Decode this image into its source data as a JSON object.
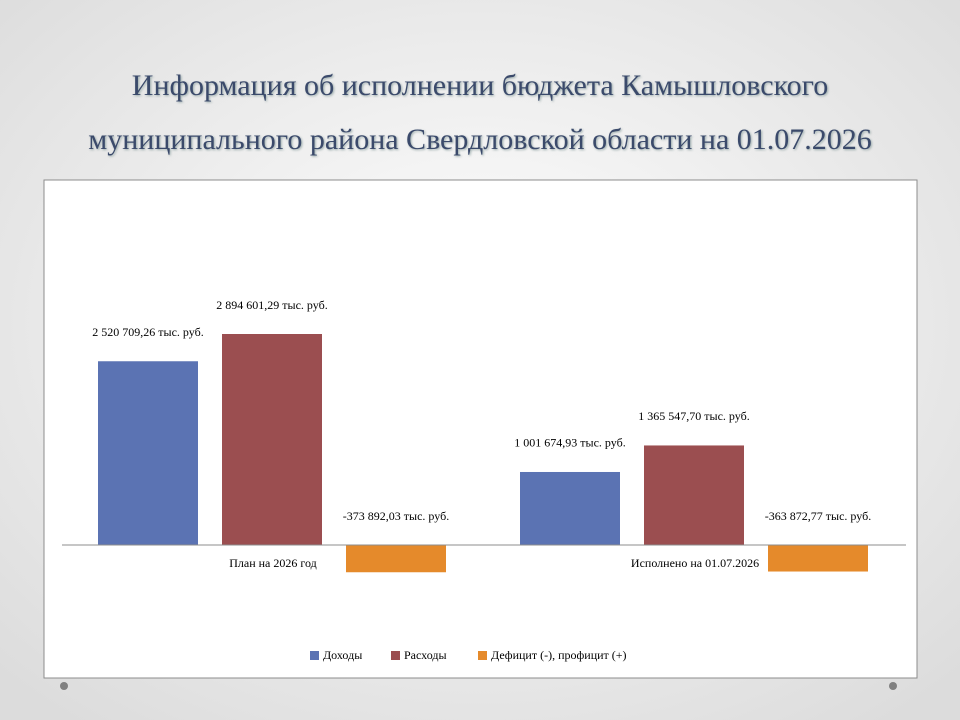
{
  "chart_data": {
    "type": "bar",
    "title": [
      "Информация об исполнении бюджета Камышловского",
      "муниципального района Свердловской области на 01.07.2026"
    ],
    "categories": [
      "План на 2026 год",
      "Исполнено на 01.07.2026"
    ],
    "series": [
      {
        "name": "Доходы",
        "color": "#5b73b3",
        "values": [
          2520709.26,
          1001674.93
        ],
        "value_labels": [
          "2 520 709,26 тыс. руб.",
          "1 001 674,93 тыс. руб."
        ]
      },
      {
        "name": "Расходы",
        "color": "#9b4e50",
        "values": [
          2894601.29,
          1365547.7
        ],
        "value_labels": [
          "2 894 601,29 тыс. руб.",
          "1 365 547,70 тыс. руб."
        ]
      },
      {
        "name": "Дефицит (-), профицит (+)",
        "color": "#e58a2b",
        "values": [
          -373892.03,
          -363872.77
        ],
        "value_labels": [
          "-373 892,03 тыс. руб.",
          "-363 872,77 тыс. руб."
        ]
      }
    ],
    "legend": "bottom"
  }
}
